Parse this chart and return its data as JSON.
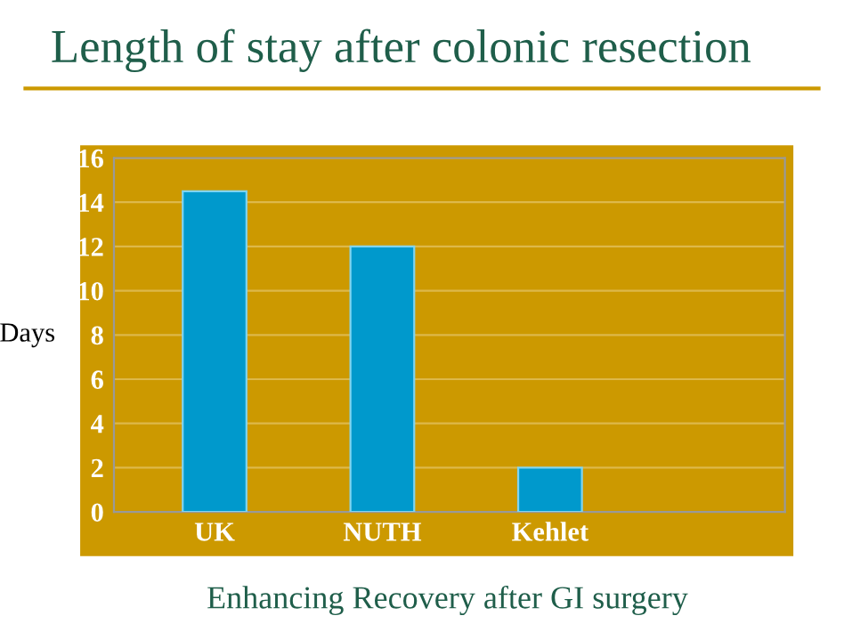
{
  "chart_data": {
    "type": "bar",
    "title": "Length of stay after colonic resection",
    "ylabel": "Days",
    "categories": [
      "UK",
      "NUTH",
      "Kehlet"
    ],
    "series": [
      {
        "color": "#0099cc",
        "values": [
          14.5,
          12,
          2
        ]
      }
    ],
    "ylim": [
      0,
      16
    ],
    "yticks": [
      0,
      2,
      4,
      6,
      8,
      10,
      12,
      14,
      16
    ],
    "grid": "y",
    "annotations": [
      "Enhancing Recovery after GI surgery"
    ]
  }
}
